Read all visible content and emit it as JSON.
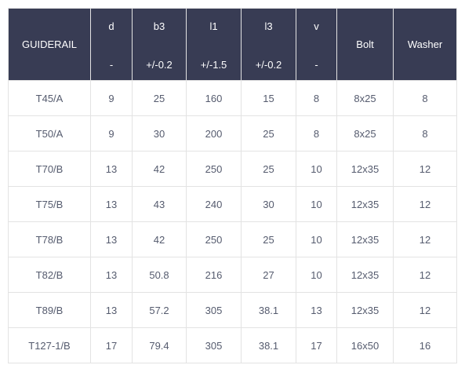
{
  "header": {
    "guiderail": "GUIDERAIL",
    "d": {
      "name": "d",
      "tol": "-"
    },
    "b3": {
      "name": "b3",
      "tol": "+/-0.2"
    },
    "l1": {
      "name": "l1",
      "tol": "+/-1.5"
    },
    "l3": {
      "name": "l3",
      "tol": "+/-0.2"
    },
    "v": {
      "name": "v",
      "tol": "-"
    },
    "bolt": "Bolt",
    "washer": "Washer"
  },
  "rows": [
    {
      "guiderail": "T45/A",
      "d": "9",
      "b3": "25",
      "l1": "160",
      "l3": "15",
      "v": "8",
      "bolt": "8x25",
      "washer": "8"
    },
    {
      "guiderail": "T50/A",
      "d": "9",
      "b3": "30",
      "l1": "200",
      "l3": "25",
      "v": "8",
      "bolt": "8x25",
      "washer": "8"
    },
    {
      "guiderail": "T70/B",
      "d": "13",
      "b3": "42",
      "l1": "250",
      "l3": "25",
      "v": "10",
      "bolt": "12x35",
      "washer": "12"
    },
    {
      "guiderail": "T75/B",
      "d": "13",
      "b3": "43",
      "l1": "240",
      "l3": "30",
      "v": "10",
      "bolt": "12x35",
      "washer": "12"
    },
    {
      "guiderail": "T78/B",
      "d": "13",
      "b3": "42",
      "l1": "250",
      "l3": "25",
      "v": "10",
      "bolt": "12x35",
      "washer": "12"
    },
    {
      "guiderail": "T82/B",
      "d": "13",
      "b3": "50.8",
      "l1": "216",
      "l3": "27",
      "v": "10",
      "bolt": "12x35",
      "washer": "12"
    },
    {
      "guiderail": "T89/B",
      "d": "13",
      "b3": "57.2",
      "l1": "305",
      "l3": "38.1",
      "v": "13",
      "bolt": "12x35",
      "washer": "12"
    },
    {
      "guiderail": "T127-1/B",
      "d": "17",
      "b3": "79.4",
      "l1": "305",
      "l3": "38.1",
      "v": "17",
      "bolt": "16x50",
      "washer": "16"
    }
  ],
  "colors": {
    "header_bg": "#383c54",
    "header_text": "#ffffff",
    "cell_text": "#555b6e",
    "border": "#e3e3e3"
  }
}
